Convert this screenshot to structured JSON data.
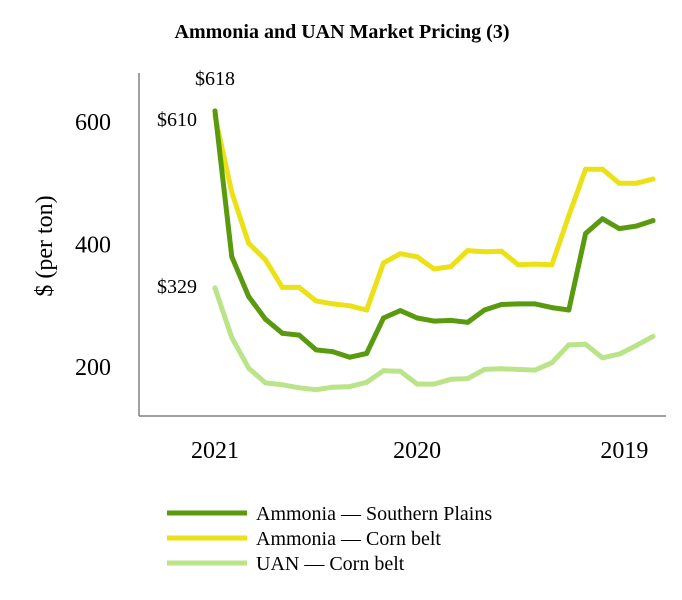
{
  "chart_data": {
    "type": "line",
    "title": "Ammonia and UAN Market Pricing (3)",
    "ylabel": "$ (per ton)",
    "xlabel": "",
    "ylim": [
      120,
      680
    ],
    "yticks": [
      200,
      400,
      600
    ],
    "xlim": [
      0,
      26
    ],
    "xticks": [
      {
        "label": "2021",
        "x": 0
      },
      {
        "label": "2020",
        "x": 12
      },
      {
        "label": "2019",
        "x": 24.3
      }
    ],
    "series": [
      {
        "name": "Ammonia — Southern Plains",
        "color": "#5a9a0f",
        "values": [
          618,
          380,
          315,
          278,
          255,
          252,
          228,
          225,
          216,
          222,
          280,
          292,
          280,
          275,
          276,
          273,
          293,
          302,
          303,
          303,
          297,
          293,
          418,
          442,
          426,
          430,
          439
        ]
      },
      {
        "name": "Ammonia — Corn belt",
        "color": "#ece016",
        "values": [
          610,
          485,
          402,
          375,
          330,
          330,
          308,
          303,
          300,
          293,
          370,
          385,
          380,
          360,
          364,
          390,
          388,
          389,
          367,
          368,
          367,
          447,
          523,
          523,
          500,
          500,
          507
        ]
      },
      {
        "name": "UAN — Corn belt",
        "color": "#bbe489",
        "values": [
          329,
          248,
          198,
          174,
          171,
          166,
          163,
          167,
          168,
          175,
          194,
          193,
          172,
          172,
          180,
          181,
          196,
          197,
          196,
          195,
          207,
          236,
          237,
          215,
          221,
          235,
          250
        ]
      }
    ],
    "annotations": [
      {
        "text": "$618",
        "series": 0,
        "index": 0
      },
      {
        "text": "$610",
        "series": 1,
        "index": 0
      },
      {
        "text": "$329",
        "series": 2,
        "index": 0
      }
    ],
    "legend": "bottom"
  }
}
